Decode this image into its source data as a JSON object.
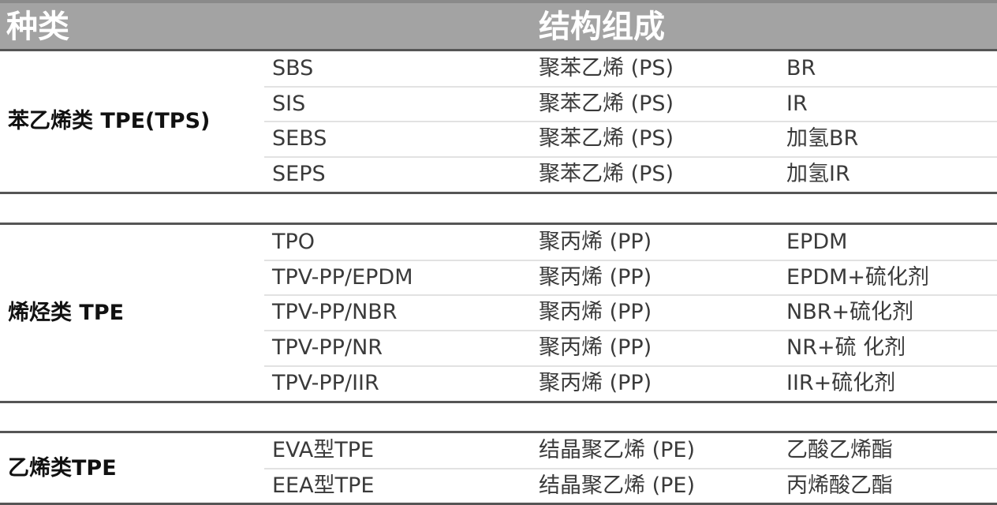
{
  "header": {
    "type": "种类",
    "structure": "结构组成"
  },
  "groups": [
    {
      "category": "苯乙烯类 TPE(TPS)",
      "rows": [
        [
          "SBS",
          "聚苯乙烯 (PS)",
          "BR"
        ],
        [
          "SIS",
          "聚苯乙烯 (PS)",
          "IR"
        ],
        [
          "SEBS",
          "聚苯乙烯 (PS)",
          "加氢BR"
        ],
        [
          "SEPS",
          "聚苯乙烯 (PS)",
          "加氢IR"
        ]
      ]
    },
    {
      "category": "烯烃类 TPE",
      "rows": [
        [
          "TPO",
          "聚丙烯 (PP)",
          "EPDM"
        ],
        [
          "TPV-PP/EPDM",
          "聚丙烯 (PP)",
          "EPDM+硫化剂"
        ],
        [
          "TPV-PP/NBR",
          "聚丙烯 (PP)",
          "NBR+硫化剂"
        ],
        [
          "TPV-PP/NR",
          "聚丙烯 (PP)",
          "NR+硫 化剂"
        ],
        [
          "TPV-PP/IIR",
          "聚丙烯 (PP)",
          "IIR+硫化剂"
        ]
      ]
    },
    {
      "category": "乙烯类TPE",
      "rows": [
        [
          "EVA型TPE",
          "结晶聚乙烯 (PE)",
          "乙酸乙烯酯"
        ],
        [
          "EEA型TPE",
          "结晶聚乙烯 (PE)",
          "丙烯酸乙酯"
        ]
      ]
    }
  ]
}
